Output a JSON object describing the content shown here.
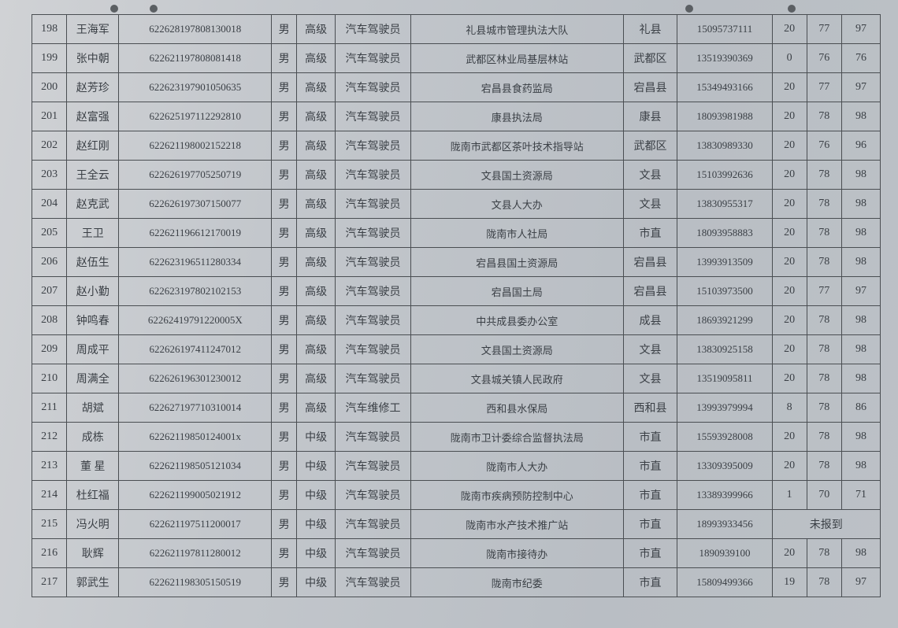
{
  "punch_positions": [
    140,
    190,
    870,
    1000
  ],
  "rows": [
    {
      "n": "198",
      "name": "王海军",
      "id": "622628197808130018",
      "sex": "男",
      "lvl": "高级",
      "job": "汽车驾驶员",
      "org": "礼县城市管理执法大队",
      "area": "礼县",
      "phone": "15095737111",
      "s1": "20",
      "s2": "77",
      "tot": "97"
    },
    {
      "n": "199",
      "name": "张中朝",
      "id": "622621197808081418",
      "sex": "男",
      "lvl": "高级",
      "job": "汽车驾驶员",
      "org": "武都区林业局基层林站",
      "area": "武都区",
      "phone": "13519390369",
      "s1": "0",
      "s2": "76",
      "tot": "76"
    },
    {
      "n": "200",
      "name": "赵芳珍",
      "id": "622623197901050635",
      "sex": "男",
      "lvl": "高级",
      "job": "汽车驾驶员",
      "org": "宕昌县食药监局",
      "area": "宕昌县",
      "phone": "15349493166",
      "s1": "20",
      "s2": "77",
      "tot": "97"
    },
    {
      "n": "201",
      "name": "赵富强",
      "id": "622625197112292810",
      "sex": "男",
      "lvl": "高级",
      "job": "汽车驾驶员",
      "org": "康县执法局",
      "area": "康县",
      "phone": "18093981988",
      "s1": "20",
      "s2": "78",
      "tot": "98"
    },
    {
      "n": "202",
      "name": "赵红刚",
      "id": "622621198002152218",
      "sex": "男",
      "lvl": "高级",
      "job": "汽车驾驶员",
      "org": "陇南市武都区茶叶技术指导站",
      "area": "武都区",
      "phone": "13830989330",
      "s1": "20",
      "s2": "76",
      "tot": "96"
    },
    {
      "n": "203",
      "name": "王全云",
      "id": "622626197705250719",
      "sex": "男",
      "lvl": "高级",
      "job": "汽车驾驶员",
      "org": "文县国土资源局",
      "area": "文县",
      "phone": "15103992636",
      "s1": "20",
      "s2": "78",
      "tot": "98"
    },
    {
      "n": "204",
      "name": "赵克武",
      "id": "622626197307150077",
      "sex": "男",
      "lvl": "高级",
      "job": "汽车驾驶员",
      "org": "文县人大办",
      "area": "文县",
      "phone": "13830955317",
      "s1": "20",
      "s2": "78",
      "tot": "98"
    },
    {
      "n": "205",
      "name": "王卫",
      "id": "622621196612170019",
      "sex": "男",
      "lvl": "高级",
      "job": "汽车驾驶员",
      "org": "陇南市人社局",
      "area": "市直",
      "phone": "18093958883",
      "s1": "20",
      "s2": "78",
      "tot": "98"
    },
    {
      "n": "206",
      "name": "赵伍生",
      "id": "622623196511280334",
      "sex": "男",
      "lvl": "高级",
      "job": "汽车驾驶员",
      "org": "宕昌县国土资源局",
      "area": "宕昌县",
      "phone": "13993913509",
      "s1": "20",
      "s2": "78",
      "tot": "98"
    },
    {
      "n": "207",
      "name": "赵小勤",
      "id": "622623197802102153",
      "sex": "男",
      "lvl": "高级",
      "job": "汽车驾驶员",
      "org": "宕昌国土局",
      "area": "宕昌县",
      "phone": "15103973500",
      "s1": "20",
      "s2": "77",
      "tot": "97"
    },
    {
      "n": "208",
      "name": "钟鸣春",
      "id": "62262419791220005X",
      "sex": "男",
      "lvl": "高级",
      "job": "汽车驾驶员",
      "org": "中共成县委办公室",
      "area": "成县",
      "phone": "18693921299",
      "s1": "20",
      "s2": "78",
      "tot": "98"
    },
    {
      "n": "209",
      "name": "周成平",
      "id": "622626197411247012",
      "sex": "男",
      "lvl": "高级",
      "job": "汽车驾驶员",
      "org": "文县国土资源局",
      "area": "文县",
      "phone": "13830925158",
      "s1": "20",
      "s2": "78",
      "tot": "98"
    },
    {
      "n": "210",
      "name": "周满全",
      "id": "622626196301230012",
      "sex": "男",
      "lvl": "高级",
      "job": "汽车驾驶员",
      "org": "文县城关镇人民政府",
      "area": "文县",
      "phone": "13519095811",
      "s1": "20",
      "s2": "78",
      "tot": "98"
    },
    {
      "n": "211",
      "name": "胡斌",
      "id": "622627197710310014",
      "sex": "男",
      "lvl": "高级",
      "job": "汽车维修工",
      "org": "西和县水保局",
      "area": "西和县",
      "phone": "13993979994",
      "s1": "8",
      "s2": "78",
      "tot": "86"
    },
    {
      "n": "212",
      "name": "成栋",
      "id": "62262119850124001x",
      "sex": "男",
      "lvl": "中级",
      "job": "汽车驾驶员",
      "org": "陇南市卫计委综合监督执法局",
      "area": "市直",
      "phone": "15593928008",
      "s1": "20",
      "s2": "78",
      "tot": "98"
    },
    {
      "n": "213",
      "name": "董 星",
      "id": "622621198505121034",
      "sex": "男",
      "lvl": "中级",
      "job": "汽车驾驶员",
      "org": "陇南市人大办",
      "area": "市直",
      "phone": "13309395009",
      "s1": "20",
      "s2": "78",
      "tot": "98"
    },
    {
      "n": "214",
      "name": "杜红福",
      "id": "622621199005021912",
      "sex": "男",
      "lvl": "中级",
      "job": "汽车驾驶员",
      "org": "陇南市疾病预防控制中心",
      "area": "市直",
      "phone": "13389399966",
      "s1": "1",
      "s2": "70",
      "tot": "71"
    },
    {
      "n": "215",
      "name": "冯火明",
      "id": "622621197511200017",
      "sex": "男",
      "lvl": "中级",
      "job": "汽车驾驶员",
      "org": "陇南市水产技术推广站",
      "area": "市直",
      "phone": "18993933456",
      "merged": "未报到"
    },
    {
      "n": "216",
      "name": "耿辉",
      "id": "622621197811280012",
      "sex": "男",
      "lvl": "中级",
      "job": "汽车驾驶员",
      "org": "陇南市接待办",
      "area": "市直",
      "phone": "1890939100",
      "s1": "20",
      "s2": "78",
      "tot": "98"
    },
    {
      "n": "217",
      "name": "郭武生",
      "id": "622621198305150519",
      "sex": "男",
      "lvl": "中级",
      "job": "汽车驾驶员",
      "org": "陇南市纪委",
      "area": "市直",
      "phone": "15809499366",
      "s1": "19",
      "s2": "78",
      "tot": "97"
    }
  ]
}
